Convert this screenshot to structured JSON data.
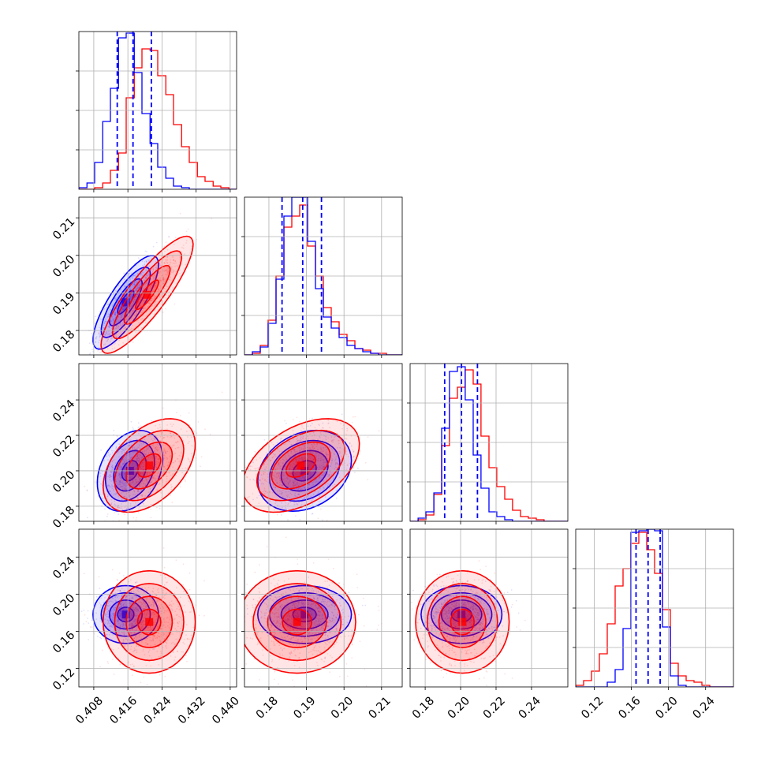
{
  "chart_data": {
    "type": "corner",
    "title": "",
    "series": [
      {
        "name": "",
        "color": "#0000ff"
      },
      {
        "name": "",
        "color": "#ff0000"
      }
    ],
    "grid": true,
    "parameters": [
      {
        "ticks": [
          0.408,
          0.416,
          0.424,
          0.432,
          0.44
        ],
        "tick_labels": [
          "0.408",
          "0.416",
          "0.424",
          "0.432",
          "0.440"
        ],
        "range": [
          0.4045,
          0.4415
        ]
      },
      {
        "ticks": [
          0.18,
          0.19,
          0.2,
          0.21
        ],
        "tick_labels": [
          "0.18",
          "0.19",
          "0.20",
          "0.21"
        ],
        "range": [
          0.1735,
          0.2155
        ]
      },
      {
        "ticks": [
          0.18,
          0.2,
          0.22,
          0.24
        ],
        "tick_labels": [
          "0.18",
          "0.20",
          "0.22",
          "0.24"
        ],
        "range": [
          0.1715,
          0.2605
        ]
      },
      {
        "ticks": [
          0.12,
          0.16,
          0.2,
          0.24
        ],
        "tick_labels": [
          "0.12",
          "0.16",
          "0.20",
          "0.24"
        ],
        "range": [
          0.1,
          0.27
        ]
      }
    ],
    "marginal_quantiles": [
      {
        "series": "blue",
        "values": [
          0.4135,
          0.4172,
          0.4215
        ]
      },
      {
        "series": "blue",
        "values": [
          0.1835,
          0.189,
          0.194
        ]
      },
      {
        "series": "blue",
        "values": [
          0.191,
          0.2005,
          0.2095
        ]
      },
      {
        "series": "blue",
        "values": [
          0.165,
          0.178,
          0.191
        ]
      }
    ],
    "marginal_histograms": [
      {
        "bin_edges": [
          0.4045,
          0.4064,
          0.4082,
          0.4101,
          0.4119,
          0.4138,
          0.4156,
          0.4175,
          0.4193,
          0.4212,
          0.423,
          0.4249,
          0.4267,
          0.4286,
          0.4304,
          0.4323,
          0.4341,
          0.436,
          0.4378,
          0.4397,
          0.4415
        ],
        "blue": [
          0.01,
          0.04,
          0.17,
          0.43,
          0.64,
          0.96,
          0.99,
          0.74,
          0.48,
          0.29,
          0.14,
          0.07,
          0.02,
          0.01,
          0.0,
          0.0,
          0.0,
          0.0,
          0.0,
          0.0
        ],
        "red": [
          0.0,
          0.0,
          0.01,
          0.04,
          0.12,
          0.23,
          0.58,
          0.77,
          0.89,
          0.88,
          0.72,
          0.6,
          0.41,
          0.27,
          0.17,
          0.08,
          0.05,
          0.02,
          0.01,
          0.0
        ]
      },
      {
        "bin_edges": [
          0.1735,
          0.1756,
          0.1777,
          0.1798,
          0.1819,
          0.184,
          0.1861,
          0.1882,
          0.1903,
          0.1924,
          0.1945,
          0.1966,
          0.1987,
          0.2008,
          0.2029,
          0.205,
          0.2071,
          0.2092,
          0.2113,
          0.2134,
          0.2155
        ],
        "blue": [
          0.0,
          0.02,
          0.05,
          0.2,
          0.48,
          0.88,
          1.0,
          1.0,
          0.72,
          0.42,
          0.24,
          0.17,
          0.11,
          0.06,
          0.04,
          0.02,
          0.01,
          0.0,
          0.0,
          0.0
        ],
        "red": [
          0.0,
          0.01,
          0.06,
          0.22,
          0.5,
          0.81,
          0.88,
          0.95,
          0.69,
          0.5,
          0.3,
          0.21,
          0.13,
          0.09,
          0.04,
          0.03,
          0.01,
          0.01,
          0.0,
          0.0
        ]
      },
      {
        "bin_edges": [
          0.1715,
          0.176,
          0.1804,
          0.1849,
          0.1893,
          0.1937,
          0.1982,
          0.2026,
          0.2071,
          0.2115,
          0.216,
          0.2204,
          0.2249,
          0.2293,
          0.2338,
          0.2382,
          0.2427,
          0.2471,
          0.2516,
          0.256,
          0.2605
        ],
        "blue": [
          0.0,
          0.02,
          0.06,
          0.18,
          0.59,
          0.95,
          0.98,
          0.77,
          0.42,
          0.21,
          0.06,
          0.03,
          0.01,
          0.0,
          0.0,
          0.0,
          0.0,
          0.0,
          0.0,
          0.0
        ],
        "red": [
          0.0,
          0.01,
          0.04,
          0.17,
          0.48,
          0.78,
          0.85,
          0.96,
          0.87,
          0.54,
          0.34,
          0.22,
          0.14,
          0.07,
          0.03,
          0.02,
          0.01,
          0.0,
          0.0,
          0.0
        ]
      },
      {
        "bin_edges": [
          0.1,
          0.1085,
          0.117,
          0.1255,
          0.134,
          0.1425,
          0.151,
          0.1595,
          0.168,
          0.1765,
          0.185,
          0.1935,
          0.202,
          0.2105,
          0.219,
          0.2275,
          0.236,
          0.2445,
          0.253,
          0.2615,
          0.27
        ],
        "blue": [
          0.0,
          0.0,
          0.0,
          0.0,
          0.03,
          0.11,
          0.37,
          0.98,
          0.99,
          1.0,
          0.99,
          0.38,
          0.07,
          0.01,
          0.0,
          0.0,
          0.0,
          0.0,
          0.0,
          0.0
        ],
        "red": [
          0.01,
          0.04,
          0.1,
          0.21,
          0.4,
          0.64,
          0.75,
          0.91,
          0.98,
          0.87,
          0.72,
          0.49,
          0.15,
          0.07,
          0.04,
          0.03,
          0.01,
          0.0,
          0.0,
          0.0
        ]
      }
    ],
    "joint_distributions": [
      {
        "row": 1,
        "col": 0,
        "blue": {
          "mean": [
            0.4155,
            0.1875
          ],
          "sd": [
            0.0032,
            0.0052
          ],
          "corr": 0.8
        },
        "red": {
          "mean": [
            0.4205,
            0.1895
          ],
          "sd": [
            0.0045,
            0.0065
          ],
          "corr": 0.86
        }
      },
      {
        "row": 2,
        "col": 0,
        "blue": {
          "mean": [
            0.4165,
            0.2
          ],
          "sd": [
            0.0032,
            0.0095
          ],
          "corr": 0.3
        },
        "red": {
          "mean": [
            0.421,
            0.203
          ],
          "sd": [
            0.0045,
            0.011
          ],
          "corr": 0.45
        }
      },
      {
        "row": 2,
        "col": 1,
        "blue": {
          "mean": [
            0.1895,
            0.2
          ],
          "sd": [
            0.0052,
            0.0095
          ],
          "corr": 0.25
        },
        "red": {
          "mean": [
            0.1885,
            0.203
          ],
          "sd": [
            0.0065,
            0.011
          ],
          "corr": 0.45
        }
      },
      {
        "row": 3,
        "col": 0,
        "blue": {
          "mean": [
            0.4155,
            0.178
          ],
          "sd": [
            0.0032,
            0.013
          ],
          "corr": 0.0
        },
        "red": {
          "mean": [
            0.421,
            0.17
          ],
          "sd": [
            0.0045,
            0.023
          ],
          "corr": 0.0
        }
      },
      {
        "row": 3,
        "col": 1,
        "blue": {
          "mean": [
            0.1895,
            0.178
          ],
          "sd": [
            0.0052,
            0.013
          ],
          "corr": 0.0
        },
        "red": {
          "mean": [
            0.1875,
            0.17
          ],
          "sd": [
            0.0065,
            0.023
          ],
          "corr": 0.0
        }
      },
      {
        "row": 3,
        "col": 2,
        "blue": {
          "mean": [
            0.2005,
            0.178
          ],
          "sd": [
            0.0095,
            0.013
          ],
          "corr": 0.0
        },
        "red": {
          "mean": [
            0.201,
            0.17
          ],
          "sd": [
            0.011,
            0.023
          ],
          "corr": 0.0
        }
      }
    ]
  }
}
